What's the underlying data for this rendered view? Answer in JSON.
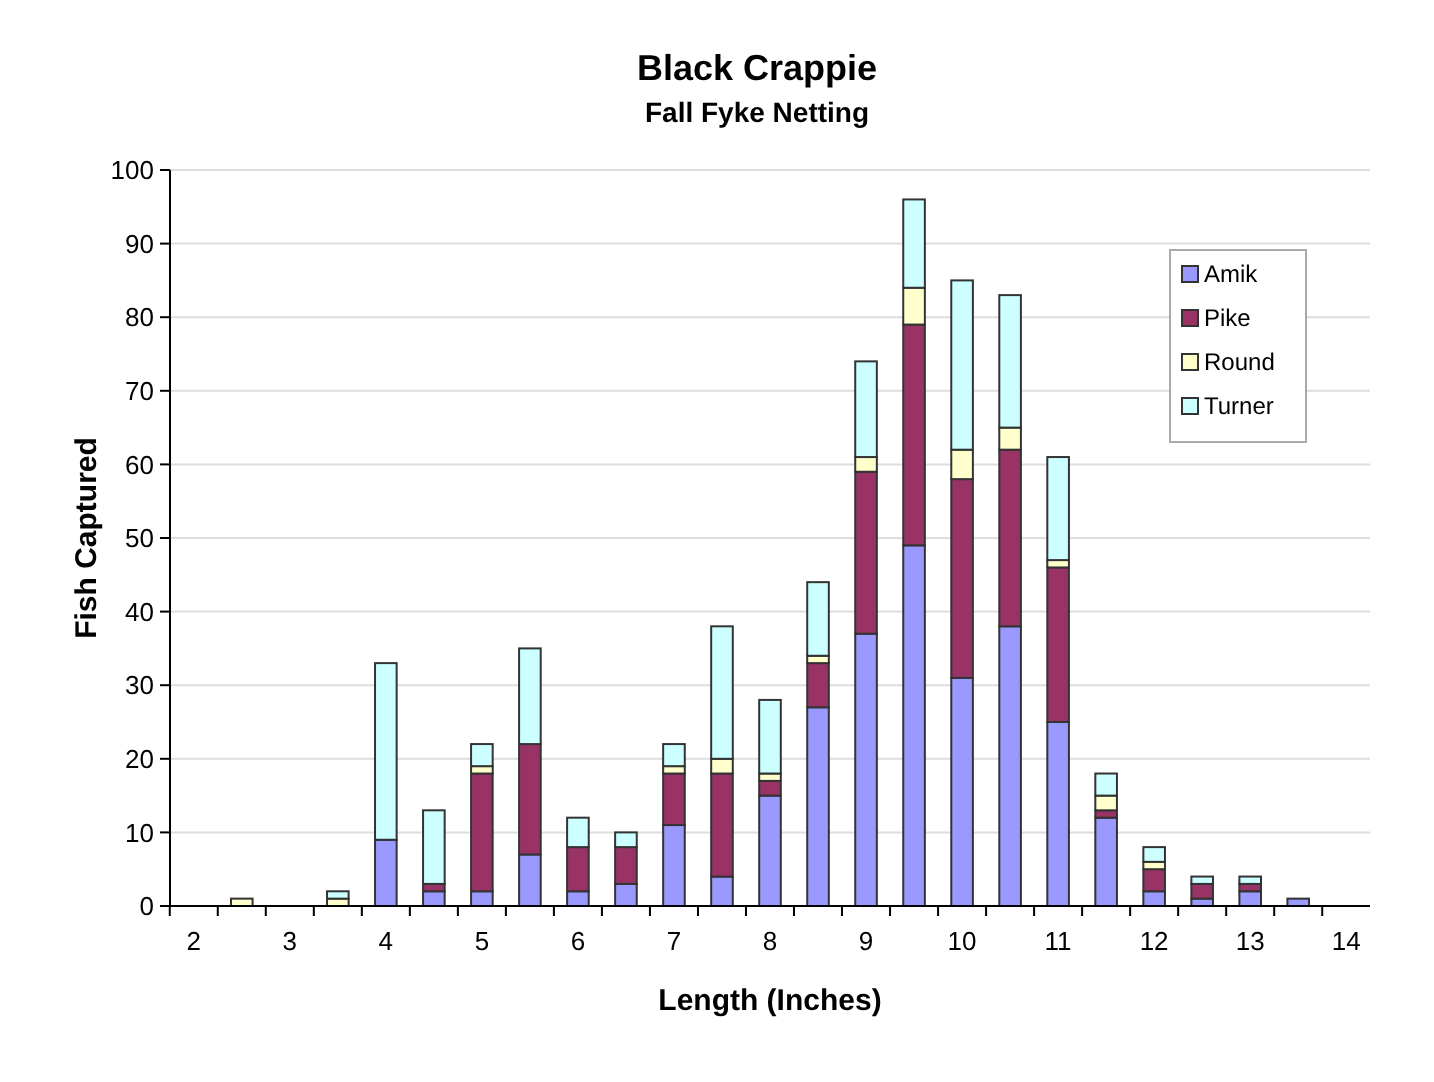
{
  "chart_data": {
    "type": "bar",
    "title": "Black Crappie",
    "subtitle": "Fall Fyke Netting",
    "xlabel": "Length (Inches)",
    "ylabel": "Fish Captured",
    "categories": [
      "2",
      null,
      "3",
      null,
      "4",
      null,
      "5",
      null,
      "6",
      null,
      "7",
      null,
      "8",
      null,
      "9",
      null,
      "10",
      null,
      "11",
      null,
      "12",
      null,
      "13",
      null,
      "14"
    ],
    "stacked": true,
    "ylim": [
      0,
      100
    ],
    "yticks": [
      0,
      10,
      20,
      30,
      40,
      50,
      60,
      70,
      80,
      90,
      100
    ],
    "grid": "y",
    "legend": "top right",
    "series": [
      {
        "name": "Amik",
        "color": "#9999ff",
        "values": [
          0,
          0,
          0,
          0,
          9,
          2,
          2,
          7,
          2,
          3,
          11,
          4,
          15,
          27,
          37,
          49,
          31,
          38,
          25,
          12,
          2,
          1,
          2,
          1,
          0
        ]
      },
      {
        "name": "Pike",
        "color": "#993366",
        "values": [
          0,
          0,
          0,
          0,
          0,
          1,
          16,
          15,
          6,
          5,
          7,
          14,
          2,
          6,
          22,
          30,
          27,
          24,
          21,
          1,
          3,
          2,
          1,
          0,
          0
        ]
      },
      {
        "name": "Round",
        "color": "#ffffcc",
        "values": [
          0,
          1,
          0,
          1,
          0,
          0,
          1,
          0,
          0,
          0,
          1,
          2,
          1,
          1,
          2,
          5,
          4,
          3,
          1,
          2,
          1,
          0,
          0,
          0,
          0
        ]
      },
      {
        "name": "Turner",
        "color": "#ccffff",
        "values": [
          0,
          0,
          0,
          1,
          24,
          10,
          3,
          13,
          4,
          2,
          3,
          18,
          10,
          10,
          13,
          12,
          23,
          18,
          14,
          3,
          2,
          1,
          1,
          0,
          0
        ]
      }
    ]
  }
}
